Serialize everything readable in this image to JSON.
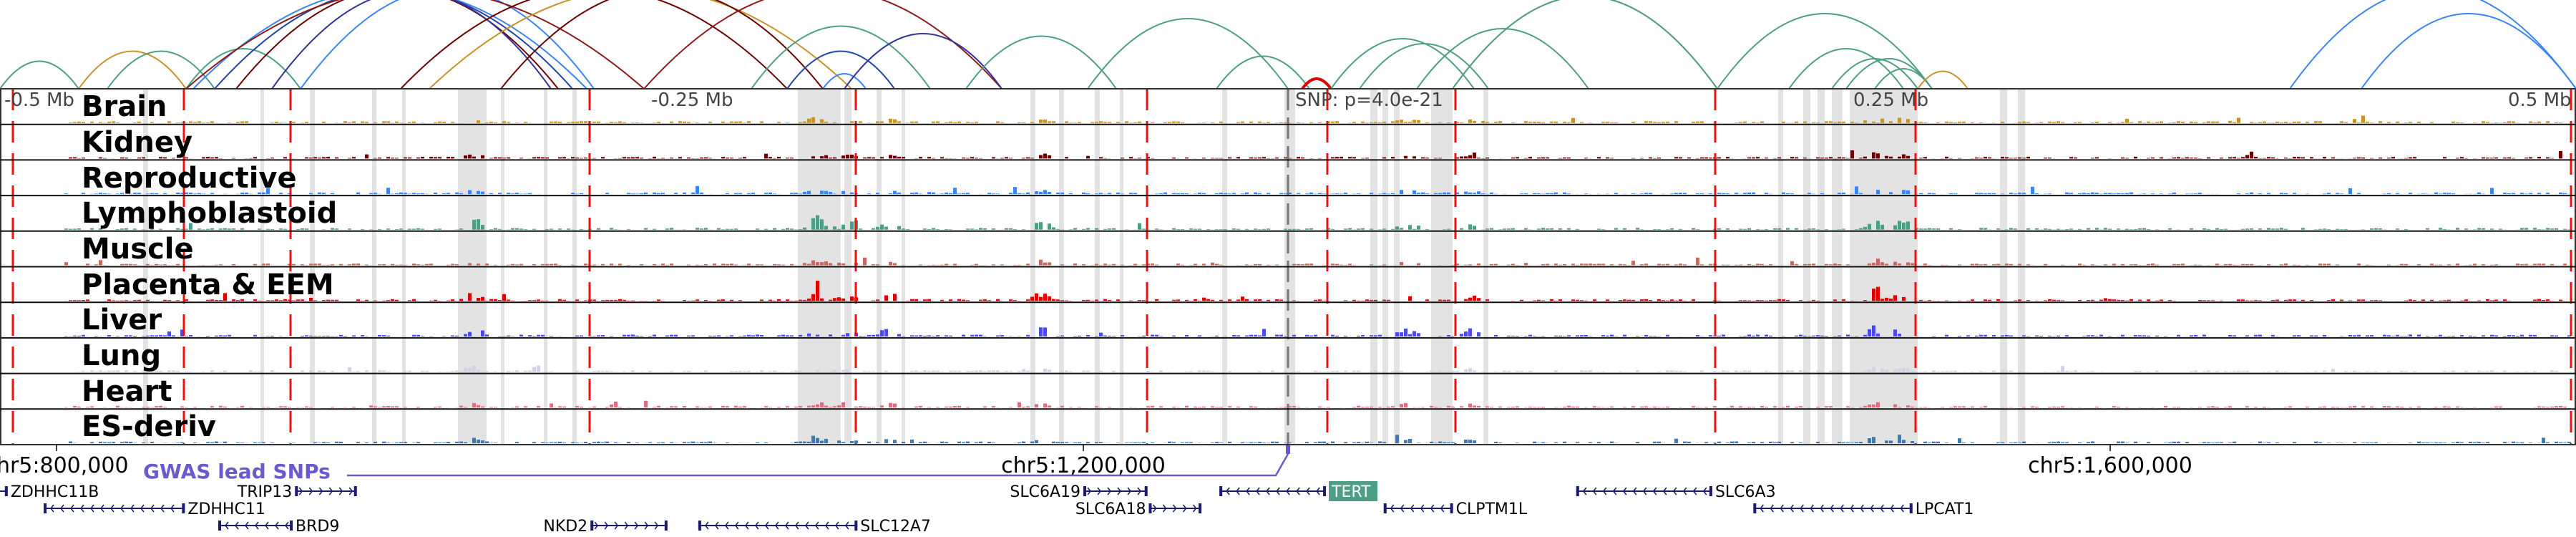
{
  "top_axis": {
    "labels": [
      "-0.5 Mb",
      "-0.25 Mb",
      "0.25 Mb",
      "0.5 Mb"
    ],
    "snp_label": "SNP: p=4.0e-21"
  },
  "tracks": [
    {
      "label": "Brain",
      "color": "#c8922b"
    },
    {
      "label": "Kidney",
      "color": "#6b0000"
    },
    {
      "label": "Reproductive",
      "color": "#3b84f5"
    },
    {
      "label": "Lymphoblastoid",
      "color": "#4e9e86"
    },
    {
      "label": "Muscle",
      "color": "#c46a5e"
    },
    {
      "label": "Placenta & EEM",
      "color": "#e00000"
    },
    {
      "label": "Liver",
      "color": "#4b4be8"
    },
    {
      "label": "Lung",
      "color": "#d8d0e8"
    },
    {
      "label": "Heart",
      "color": "#d87080"
    },
    {
      "label": "ES-deriv",
      "color": "#4477aa"
    }
  ],
  "genome_axis": {
    "ticks": [
      {
        "pos": 800000,
        "label": "chr5:800,000"
      },
      {
        "pos": 1200000,
        "label": "chr5:1,200,000"
      },
      {
        "pos": 1600000,
        "label": "chr5:1,600,000"
      }
    ]
  },
  "gwas": {
    "label": "GWAS lead SNPs",
    "color": "#6a5acd"
  },
  "genes": [
    {
      "name": "ZDHHC11B",
      "start": 770000,
      "end": 781000,
      "strand": "-",
      "row": 0,
      "label_side": "right"
    },
    {
      "name": "TRIP13",
      "start": 892900,
      "end": 917000,
      "strand": "+",
      "row": 0,
      "label_side": "left"
    },
    {
      "name": "ZDHHC11",
      "start": 795000,
      "end": 850000,
      "strand": "-",
      "row": 1,
      "label_side": "right"
    },
    {
      "name": "BRD9",
      "start": 863000,
      "end": 892000,
      "strand": "-",
      "row": 2,
      "label_side": "right"
    },
    {
      "name": "NKD2",
      "start": 1008000,
      "end": 1038000,
      "strand": "+",
      "row": 2,
      "label_side": "left"
    },
    {
      "name": "SLC12A7",
      "start": 1050000,
      "end": 1112000,
      "strand": "-",
      "row": 2,
      "label_side": "right"
    },
    {
      "name": "SLC6A19",
      "start": 1200000,
      "end": 1225000,
      "strand": "+",
      "row": 0,
      "label_side": "left"
    },
    {
      "name": "SLC6A18",
      "start": 1225500,
      "end": 1246000,
      "strand": "+",
      "row": 1,
      "label_side": "left"
    },
    {
      "name": "TERT",
      "start": 1253000,
      "end": 1294500,
      "strand": "-",
      "row": 0,
      "label_side": "right",
      "highlight": "#4e9e86"
    },
    {
      "name": "CLPTM1L",
      "start": 1317000,
      "end": 1344000,
      "strand": "-",
      "row": 1,
      "label_side": "right"
    },
    {
      "name": "SLC6A3",
      "start": 1392000,
      "end": 1445000,
      "strand": "-",
      "row": 0,
      "label_side": "right"
    },
    {
      "name": "LPCAT1",
      "start": 1461000,
      "end": 1523000,
      "strand": "-",
      "row": 1,
      "label_side": "right"
    }
  ]
}
